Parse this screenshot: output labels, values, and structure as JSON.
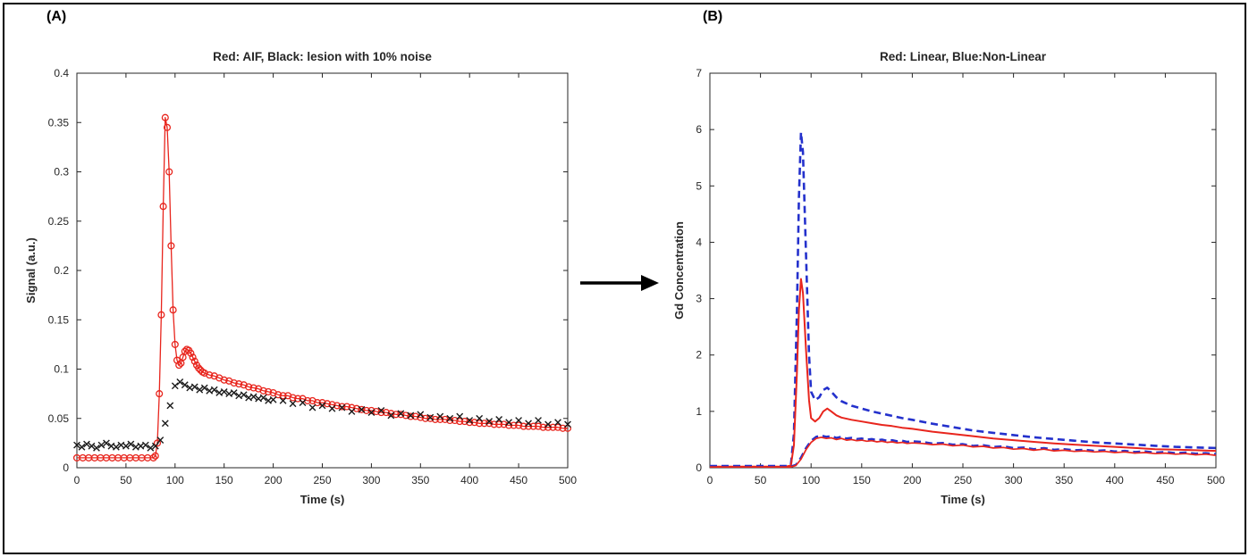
{
  "figure": {
    "panel_a_label": "(A)",
    "panel_b_label": "(B)"
  },
  "colors": {
    "red": "#e8251d",
    "blue": "#2431cc",
    "black": "#1a1a1a",
    "axis": "#262626"
  },
  "chart_data": [
    {
      "type": "line",
      "title": "Red: AIF, Black: lesion with 10% noise",
      "xlabel": "Time (s)",
      "ylabel": "Signal (a.u.)",
      "xlim": [
        0,
        500
      ],
      "ylim": [
        0,
        0.4
      ],
      "grid": false,
      "legend": "none",
      "xticks": [
        0,
        50,
        100,
        150,
        200,
        250,
        300,
        350,
        400,
        450,
        500
      ],
      "xtick_labels": [
        "0",
        "50",
        "100",
        "150",
        "200",
        "250",
        "300",
        "350",
        "400",
        "450",
        "500"
      ],
      "yticks": [
        0,
        0.05,
        0.1,
        0.15,
        0.2,
        0.25,
        0.3,
        0.35,
        0.4
      ],
      "ytick_labels": [
        "0",
        "0.05",
        "0.1",
        "0.15",
        "0.2",
        "0.25",
        "0.3",
        "0.35",
        "0.4"
      ],
      "series": [
        {
          "name": "AIF",
          "color": "#e8251d",
          "line": "solid",
          "marker": "circle",
          "width": 1.3,
          "x": [
            0,
            6,
            12,
            18,
            24,
            30,
            36,
            42,
            48,
            54,
            60,
            66,
            72,
            78,
            80,
            82,
            84,
            86,
            88,
            90,
            92,
            94,
            96,
            98,
            100,
            102,
            104,
            106,
            108,
            110,
            112,
            114,
            116,
            118,
            120,
            122,
            124,
            126,
            128,
            130,
            135,
            140,
            145,
            150,
            155,
            160,
            165,
            170,
            175,
            180,
            185,
            190,
            195,
            200,
            205,
            210,
            215,
            220,
            225,
            230,
            235,
            240,
            245,
            250,
            255,
            260,
            265,
            270,
            275,
            280,
            285,
            290,
            295,
            300,
            305,
            310,
            315,
            320,
            325,
            330,
            335,
            340,
            345,
            350,
            355,
            360,
            365,
            370,
            375,
            380,
            385,
            390,
            395,
            400,
            405,
            410,
            415,
            420,
            425,
            430,
            435,
            440,
            445,
            450,
            455,
            460,
            465,
            470,
            475,
            480,
            485,
            490,
            495,
            500
          ],
          "y": [
            0.01,
            0.01,
            0.01,
            0.01,
            0.01,
            0.01,
            0.01,
            0.01,
            0.01,
            0.01,
            0.01,
            0.01,
            0.01,
            0.01,
            0.012,
            0.025,
            0.075,
            0.155,
            0.265,
            0.355,
            0.345,
            0.3,
            0.225,
            0.16,
            0.125,
            0.109,
            0.104,
            0.106,
            0.112,
            0.118,
            0.12,
            0.119,
            0.116,
            0.112,
            0.108,
            0.104,
            0.101,
            0.099,
            0.097,
            0.096,
            0.094,
            0.093,
            0.091,
            0.089,
            0.088,
            0.086,
            0.085,
            0.084,
            0.082,
            0.081,
            0.08,
            0.078,
            0.077,
            0.076,
            0.074,
            0.073,
            0.073,
            0.071,
            0.07,
            0.07,
            0.068,
            0.068,
            0.066,
            0.066,
            0.065,
            0.064,
            0.063,
            0.062,
            0.062,
            0.061,
            0.06,
            0.059,
            0.058,
            0.058,
            0.057,
            0.056,
            0.056,
            0.055,
            0.054,
            0.054,
            0.053,
            0.052,
            0.052,
            0.051,
            0.05,
            0.05,
            0.049,
            0.049,
            0.049,
            0.048,
            0.048,
            0.047,
            0.047,
            0.046,
            0.046,
            0.045,
            0.045,
            0.045,
            0.044,
            0.044,
            0.044,
            0.043,
            0.043,
            0.043,
            0.042,
            0.042,
            0.042,
            0.042,
            0.041,
            0.041,
            0.041,
            0.041,
            0.04,
            0.04
          ]
        },
        {
          "name": "lesion with 10% noise",
          "color": "#1a1a1a",
          "line": "none",
          "marker": "x",
          "width": 1.4,
          "x": [
            0,
            5,
            10,
            15,
            20,
            25,
            30,
            35,
            40,
            45,
            50,
            55,
            60,
            65,
            70,
            75,
            80,
            85,
            90,
            95,
            100,
            105,
            110,
            115,
            120,
            125,
            130,
            135,
            140,
            145,
            150,
            155,
            160,
            165,
            170,
            175,
            180,
            185,
            190,
            195,
            200,
            210,
            220,
            230,
            240,
            250,
            260,
            270,
            280,
            290,
            300,
            310,
            320,
            330,
            340,
            350,
            360,
            370,
            380,
            390,
            400,
            410,
            420,
            430,
            440,
            450,
            460,
            470,
            480,
            490,
            500
          ],
          "y": [
            0.023,
            0.021,
            0.024,
            0.022,
            0.02,
            0.023,
            0.025,
            0.022,
            0.021,
            0.023,
            0.022,
            0.024,
            0.021,
            0.022,
            0.023,
            0.02,
            0.022,
            0.028,
            0.045,
            0.063,
            0.083,
            0.087,
            0.084,
            0.081,
            0.082,
            0.079,
            0.081,
            0.078,
            0.079,
            0.076,
            0.077,
            0.075,
            0.076,
            0.073,
            0.074,
            0.071,
            0.072,
            0.07,
            0.071,
            0.068,
            0.069,
            0.068,
            0.065,
            0.066,
            0.061,
            0.063,
            0.06,
            0.061,
            0.057,
            0.059,
            0.056,
            0.058,
            0.053,
            0.055,
            0.053,
            0.054,
            0.051,
            0.052,
            0.05,
            0.052,
            0.048,
            0.05,
            0.047,
            0.049,
            0.046,
            0.048,
            0.045,
            0.048,
            0.044,
            0.046,
            0.044
          ]
        }
      ]
    },
    {
      "type": "line",
      "title": "Red: Linear, Blue:Non-Linear",
      "xlabel": "Time (s)",
      "ylabel": "Gd Concentration",
      "xlim": [
        0,
        500
      ],
      "ylim": [
        0,
        7
      ],
      "grid": false,
      "legend": "none",
      "xticks": [
        0,
        50,
        100,
        150,
        200,
        250,
        300,
        350,
        400,
        450,
        500
      ],
      "xtick_labels": [
        "0",
        "50",
        "100",
        "150",
        "200",
        "250",
        "300",
        "350",
        "400",
        "450",
        "500"
      ],
      "yticks": [
        0,
        1,
        2,
        3,
        4,
        5,
        6,
        7
      ],
      "ytick_labels": [
        "0",
        "1",
        "2",
        "3",
        "4",
        "5",
        "6",
        "7"
      ],
      "series": [
        {
          "name": "AIF non-linear",
          "color": "#2431cc",
          "line": "dashed",
          "marker": "none",
          "width": 2.6,
          "x": [
            0,
            20,
            40,
            60,
            75,
            80,
            83,
            86,
            88,
            90,
            92,
            95,
            98,
            100,
            104,
            108,
            112,
            116,
            120,
            125,
            130,
            140,
            150,
            160,
            170,
            180,
            190,
            200,
            220,
            240,
            260,
            280,
            300,
            320,
            340,
            360,
            380,
            400,
            420,
            440,
            460,
            480,
            500
          ],
          "y": [
            0.03,
            0.03,
            0.03,
            0.03,
            0.03,
            0.05,
            0.6,
            2.8,
            4.8,
            5.95,
            5.6,
            3.8,
            2.0,
            1.35,
            1.2,
            1.25,
            1.38,
            1.42,
            1.35,
            1.25,
            1.18,
            1.1,
            1.05,
            1.0,
            0.96,
            0.92,
            0.88,
            0.85,
            0.78,
            0.72,
            0.66,
            0.62,
            0.58,
            0.54,
            0.51,
            0.48,
            0.45,
            0.43,
            0.41,
            0.39,
            0.37,
            0.36,
            0.35
          ]
        },
        {
          "name": "AIF linear",
          "color": "#e8251d",
          "line": "solid",
          "marker": "none",
          "width": 2.0,
          "x": [
            0,
            20,
            40,
            60,
            75,
            80,
            83,
            86,
            88,
            90,
            92,
            95,
            98,
            100,
            104,
            108,
            112,
            116,
            120,
            125,
            130,
            140,
            150,
            160,
            170,
            180,
            190,
            200,
            220,
            240,
            260,
            280,
            300,
            320,
            340,
            360,
            380,
            400,
            420,
            440,
            460,
            480,
            500
          ],
          "y": [
            0.02,
            0.02,
            0.02,
            0.02,
            0.02,
            0.04,
            0.4,
            1.7,
            2.8,
            3.35,
            3.1,
            2.1,
            1.2,
            0.88,
            0.82,
            0.88,
            1.0,
            1.05,
            1.0,
            0.93,
            0.89,
            0.85,
            0.82,
            0.79,
            0.76,
            0.74,
            0.71,
            0.69,
            0.64,
            0.6,
            0.56,
            0.52,
            0.49,
            0.46,
            0.43,
            0.41,
            0.39,
            0.37,
            0.35,
            0.33,
            0.32,
            0.31,
            0.3
          ]
        },
        {
          "name": "lesion non-linear",
          "color": "#2431cc",
          "line": "dashed",
          "marker": "none",
          "width": 2.4,
          "x": [
            0,
            10,
            20,
            30,
            40,
            50,
            60,
            70,
            80,
            85,
            90,
            95,
            100,
            105,
            110,
            115,
            120,
            125,
            130,
            135,
            140,
            145,
            150,
            155,
            160,
            165,
            170,
            175,
            180,
            185,
            190,
            195,
            200,
            210,
            220,
            230,
            240,
            250,
            260,
            270,
            280,
            290,
            300,
            310,
            320,
            330,
            340,
            350,
            360,
            370,
            380,
            390,
            400,
            410,
            420,
            430,
            440,
            450,
            460,
            470,
            480,
            490,
            500
          ],
          "y": [
            0.02,
            0.02,
            0.02,
            0.02,
            0.02,
            0.02,
            0.02,
            0.02,
            0.02,
            0.05,
            0.18,
            0.35,
            0.48,
            0.55,
            0.57,
            0.55,
            0.56,
            0.53,
            0.55,
            0.52,
            0.53,
            0.51,
            0.52,
            0.5,
            0.51,
            0.49,
            0.5,
            0.48,
            0.49,
            0.47,
            0.48,
            0.46,
            0.47,
            0.46,
            0.43,
            0.44,
            0.41,
            0.42,
            0.39,
            0.4,
            0.37,
            0.38,
            0.35,
            0.36,
            0.33,
            0.35,
            0.32,
            0.33,
            0.31,
            0.32,
            0.3,
            0.31,
            0.29,
            0.3,
            0.28,
            0.29,
            0.27,
            0.28,
            0.26,
            0.27,
            0.25,
            0.26,
            0.24
          ]
        },
        {
          "name": "lesion linear",
          "color": "#e8251d",
          "line": "solid",
          "marker": "none",
          "width": 1.7,
          "x": [
            0,
            10,
            20,
            30,
            40,
            50,
            60,
            70,
            80,
            85,
            90,
            95,
            100,
            105,
            110,
            115,
            120,
            125,
            130,
            135,
            140,
            145,
            150,
            155,
            160,
            165,
            170,
            175,
            180,
            185,
            190,
            195,
            200,
            210,
            220,
            230,
            240,
            250,
            260,
            270,
            280,
            290,
            300,
            310,
            320,
            330,
            340,
            350,
            360,
            370,
            380,
            390,
            400,
            410,
            420,
            430,
            440,
            450,
            460,
            470,
            480,
            490,
            500
          ],
          "y": [
            0.015,
            0.015,
            0.015,
            0.015,
            0.015,
            0.015,
            0.015,
            0.015,
            0.015,
            0.04,
            0.15,
            0.32,
            0.45,
            0.52,
            0.54,
            0.52,
            0.53,
            0.5,
            0.52,
            0.49,
            0.5,
            0.48,
            0.49,
            0.47,
            0.48,
            0.46,
            0.47,
            0.45,
            0.46,
            0.44,
            0.45,
            0.43,
            0.44,
            0.43,
            0.41,
            0.42,
            0.39,
            0.4,
            0.37,
            0.38,
            0.35,
            0.36,
            0.33,
            0.34,
            0.31,
            0.33,
            0.3,
            0.31,
            0.29,
            0.3,
            0.28,
            0.29,
            0.27,
            0.28,
            0.26,
            0.27,
            0.25,
            0.26,
            0.24,
            0.25,
            0.23,
            0.24,
            0.22
          ]
        }
      ]
    }
  ]
}
